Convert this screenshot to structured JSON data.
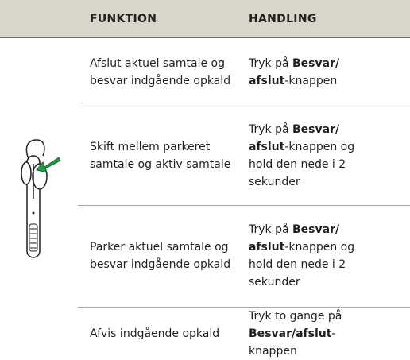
{
  "table": {
    "header": [
      "FUNKTION",
      "HANDLING"
    ],
    "rows": [
      {
        "function": [
          "Afslut aktuel samtale og",
          "besvar indgående opkald"
        ],
        "action": [
          [
            {
              "text": "Tryk på "
            },
            {
              "text": "Besvar/",
              "bold": true
            }
          ],
          [
            {
              "text": "afslut",
              "bold": true
            },
            {
              "text": "-knappen"
            }
          ]
        ]
      },
      {
        "function": [
          "Skift mellem parkeret",
          "samtale og aktiv samtale"
        ],
        "action": [
          [
            {
              "text": "Tryk på "
            },
            {
              "text": "Besvar/",
              "bold": true
            }
          ],
          [
            {
              "text": "afslut",
              "bold": true
            },
            {
              "text": "-knappen og"
            }
          ],
          [
            {
              "text": "hold den nede i 2"
            }
          ],
          [
            {
              "text": "sekunder"
            }
          ]
        ]
      },
      {
        "function": [
          "Parker aktuel samtale og",
          "besvar indgående opkald"
        ],
        "action": [
          [
            {
              "text": "Tryk på "
            },
            {
              "text": "Besvar/",
              "bold": true
            }
          ],
          [
            {
              "text": "afslut",
              "bold": true
            },
            {
              "text": "-knappen og"
            }
          ],
          [
            {
              "text": "hold den nede i 2"
            }
          ],
          [
            {
              "text": "sekunder"
            }
          ]
        ]
      },
      {
        "function": [
          "Afvis indgående opkald"
        ],
        "action": [
          [
            {
              "text": "Tryk to gange på"
            }
          ],
          [
            {
              "text": "Besvar/afslut",
              "bold": true
            },
            {
              "text": "-"
            }
          ],
          [
            {
              "text": "knappen"
            }
          ]
        ]
      }
    ]
  }
}
